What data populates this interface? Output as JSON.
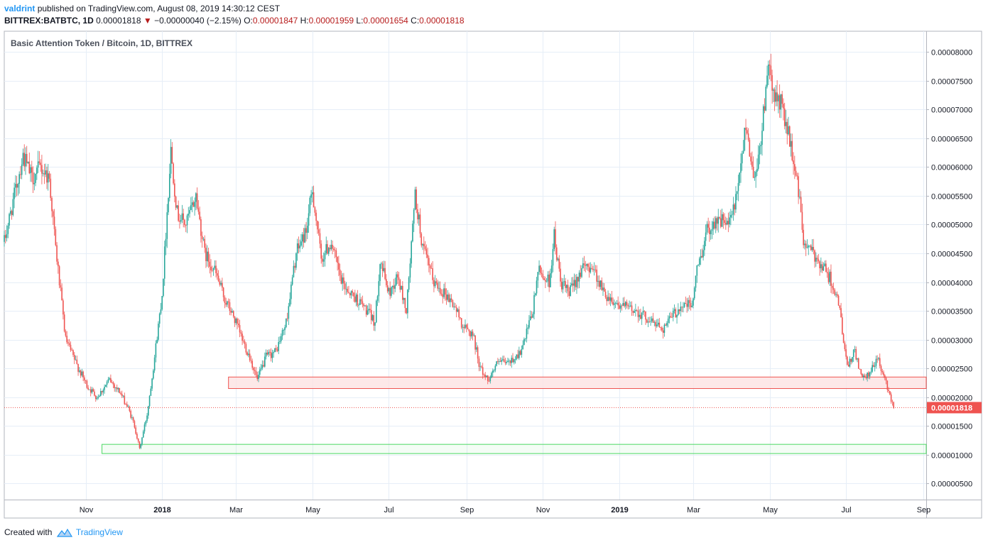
{
  "header": {
    "author": "valdrint",
    "published_text": "published on TradingView.com, August 08, 2019 14:30:12 CEST"
  },
  "ohlc": {
    "symbol_interval": "BITTREX:BATBTC, 1D",
    "last": "0.00001818",
    "change_arrow": "▼",
    "change": "−0.00000040 (−2.15%)",
    "o_label": "O:",
    "o_value": "0.00001847",
    "h_label": "H:",
    "h_value": "0.00001959",
    "l_label": "L:",
    "l_value": "0.00001654",
    "c_label": "C:",
    "c_value": "0.00001818"
  },
  "footer": {
    "created_with": "Created with",
    "brand": "TradingView"
  },
  "colors": {
    "up": "#26a69a",
    "down": "#ef5350",
    "grid": "#e6eef7",
    "resistance_fill": "#fde2e2",
    "resistance_stroke": "#ef5350",
    "support_stroke": "#4cd964",
    "price_line": "#ef5350",
    "price_label_bg": "#ef5350"
  },
  "chart_data": {
    "type": "candlestick",
    "title": "Basic Attention Token / Bitcoin, 1D, BITTREX",
    "x_ticks": [
      "Nov",
      "2018",
      "Mar",
      "May",
      "Jul",
      "Sep",
      "Nov",
      "2019",
      "Mar",
      "May",
      "Jul",
      "Sep"
    ],
    "x_range": [
      "2017-08-28",
      "2019-09-03"
    ],
    "y_ticks": [
      "0.00008000",
      "0.00007500",
      "0.00007000",
      "0.00006500",
      "0.00006000",
      "0.00005500",
      "0.00005000",
      "0.00004500",
      "0.00004000",
      "0.00003500",
      "0.00003000",
      "0.00002500",
      "0.00002000",
      "0.00001500",
      "0.00001000",
      "0.00000500"
    ],
    "y_range": [
      2.2e-06,
      8.36e-05
    ],
    "last_price": 1.818e-05,
    "last_price_label": "0.00001818",
    "zones": [
      {
        "kind": "resistance-support",
        "from": "2018-02-23",
        "to": "2019-09-03",
        "low": 2.15e-05,
        "high": 2.35e-05
      },
      {
        "kind": "support",
        "from": "2017-11-14",
        "to": "2019-09-03",
        "low": 1.02e-05,
        "high": 1.18e-05
      }
    ],
    "price_path": [
      [
        "2017-08-28",
        4.7e-05
      ],
      [
        "2017-09-05",
        5.5e-05
      ],
      [
        "2017-09-12",
        6.2e-05
      ],
      [
        "2017-09-19",
        5.8e-05
      ],
      [
        "2017-09-26",
        6e-05
      ],
      [
        "2017-10-03",
        5.8e-05
      ],
      [
        "2017-10-08",
        4.6e-05
      ],
      [
        "2017-10-16",
        3e-05
      ],
      [
        "2017-10-24",
        2.6e-05
      ],
      [
        "2017-11-02",
        2.2e-05
      ],
      [
        "2017-11-10",
        2e-05
      ],
      [
        "2017-11-20",
        2.3e-05
      ],
      [
        "2017-11-28",
        2.1e-05
      ],
      [
        "2017-12-05",
        1.8e-05
      ],
      [
        "2017-12-10",
        1.5e-05
      ],
      [
        "2017-12-14",
        1.1e-05
      ],
      [
        "2017-12-20",
        1.7e-05
      ],
      [
        "2017-12-26",
        2.7e-05
      ],
      [
        "2018-01-01",
        3.8e-05
      ],
      [
        "2018-01-08",
        6.3e-05
      ],
      [
        "2018-01-13",
        5.2e-05
      ],
      [
        "2018-01-20",
        5e-05
      ],
      [
        "2018-01-28",
        5.5e-05
      ],
      [
        "2018-02-04",
        4.5e-05
      ],
      [
        "2018-02-12",
        4.2e-05
      ],
      [
        "2018-02-20",
        3.7e-05
      ],
      [
        "2018-02-27",
        3.4e-05
      ],
      [
        "2018-03-06",
        3e-05
      ],
      [
        "2018-03-12",
        2.7e-05
      ],
      [
        "2018-03-18",
        2.3e-05
      ],
      [
        "2018-03-25",
        2.7e-05
      ],
      [
        "2018-04-02",
        2.8e-05
      ],
      [
        "2018-04-10",
        3.3e-05
      ],
      [
        "2018-04-18",
        4.5e-05
      ],
      [
        "2018-04-26",
        4.9e-05
      ],
      [
        "2018-05-01",
        5.6e-05
      ],
      [
        "2018-05-08",
        4.4e-05
      ],
      [
        "2018-05-16",
        4.7e-05
      ],
      [
        "2018-05-24",
        4e-05
      ],
      [
        "2018-06-01",
        3.8e-05
      ],
      [
        "2018-06-10",
        3.6e-05
      ],
      [
        "2018-06-20",
        3.3e-05
      ],
      [
        "2018-06-24",
        4.4e-05
      ],
      [
        "2018-07-01",
        3.8e-05
      ],
      [
        "2018-07-08",
        4.1e-05
      ],
      [
        "2018-07-15",
        3.5e-05
      ],
      [
        "2018-07-22",
        5.5e-05
      ],
      [
        "2018-07-28",
        4.6e-05
      ],
      [
        "2018-08-06",
        4e-05
      ],
      [
        "2018-08-15",
        3.8e-05
      ],
      [
        "2018-08-22",
        3.6e-05
      ],
      [
        "2018-08-30",
        3.2e-05
      ],
      [
        "2018-09-06",
        3.1e-05
      ],
      [
        "2018-09-12",
        2.5e-05
      ],
      [
        "2018-09-18",
        2.3e-05
      ],
      [
        "2018-09-26",
        2.6e-05
      ],
      [
        "2018-10-05",
        2.6e-05
      ],
      [
        "2018-10-15",
        2.8e-05
      ],
      [
        "2018-10-24",
        3.5e-05
      ],
      [
        "2018-10-28",
        4.2e-05
      ],
      [
        "2018-11-06",
        4e-05
      ],
      [
        "2018-11-10",
        4.8e-05
      ],
      [
        "2018-11-15",
        4e-05
      ],
      [
        "2018-11-22",
        3.8e-05
      ],
      [
        "2018-12-01",
        4.2e-05
      ],
      [
        "2018-12-10",
        4.3e-05
      ],
      [
        "2018-12-20",
        3.8e-05
      ],
      [
        "2019-01-01",
        3.6e-05
      ],
      [
        "2019-01-15",
        3.5e-05
      ],
      [
        "2019-01-28",
        3.3e-05
      ],
      [
        "2019-02-05",
        3.2e-05
      ],
      [
        "2019-02-12",
        3.4e-05
      ],
      [
        "2019-02-20",
        3.6e-05
      ],
      [
        "2019-02-28",
        3.6e-05
      ],
      [
        "2019-03-04",
        4.2e-05
      ],
      [
        "2019-03-12",
        4.9e-05
      ],
      [
        "2019-03-20",
        5.1e-05
      ],
      [
        "2019-03-30",
        5e-05
      ],
      [
        "2019-04-06",
        5.6e-05
      ],
      [
        "2019-04-12",
        6.8e-05
      ],
      [
        "2019-04-18",
        5.8e-05
      ],
      [
        "2019-04-24",
        6.4e-05
      ],
      [
        "2019-04-29",
        7.7e-05
      ],
      [
        "2019-05-06",
        7.2e-05
      ],
      [
        "2019-05-12",
        7e-05
      ],
      [
        "2019-05-18",
        6.3e-05
      ],
      [
        "2019-05-23",
        5.8e-05
      ],
      [
        "2019-05-28",
        4.7e-05
      ],
      [
        "2019-06-04",
        4.5e-05
      ],
      [
        "2019-06-12",
        4.3e-05
      ],
      [
        "2019-06-20",
        4e-05
      ],
      [
        "2019-06-26",
        3.5e-05
      ],
      [
        "2019-07-02",
        2.5e-05
      ],
      [
        "2019-07-08",
        2.8e-05
      ],
      [
        "2019-07-14",
        2.3e-05
      ],
      [
        "2019-07-20",
        2.4e-05
      ],
      [
        "2019-07-26",
        2.7e-05
      ],
      [
        "2019-08-01",
        2.3e-05
      ],
      [
        "2019-08-08",
        1.82e-05
      ]
    ]
  }
}
